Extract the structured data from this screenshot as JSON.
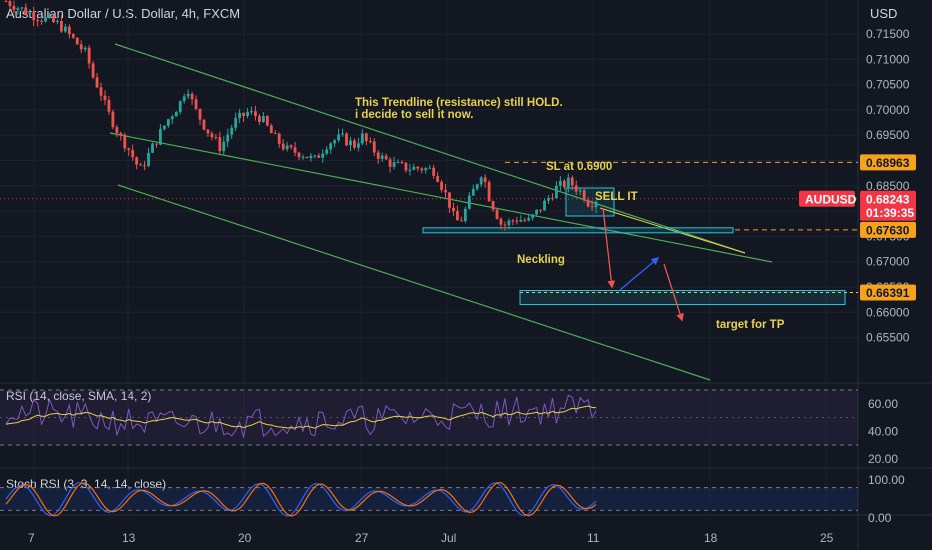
{
  "header": {
    "title": "Australian Dollar / U.S. Dollar, 4h, FXCM",
    "currency": "USD"
  },
  "price_axis": {
    "ticks": [
      "0.71500",
      "0.71000",
      "0.70500",
      "0.70000",
      "0.69500",
      "0.69000",
      "0.68500",
      "0.68000",
      "0.67500",
      "0.67000",
      "0.66500",
      "0.66000",
      "0.65500"
    ]
  },
  "time_axis": {
    "ticks": [
      "7",
      "13",
      "20",
      "27",
      "Jul",
      "11",
      "18",
      "25"
    ]
  },
  "price_tags": [
    {
      "price": 0.68963,
      "label": "0.68963",
      "bg": "#f7a21b",
      "fg": "#131722"
    },
    {
      "price": 0.6763,
      "label": "0.67630",
      "bg": "#f7a21b",
      "fg": "#131722"
    },
    {
      "price": 0.66391,
      "label": "0.66391",
      "bg": "#f7a21b",
      "fg": "#131722"
    }
  ],
  "current": {
    "symbol": "AUDUSD",
    "price": 0.68243,
    "price_label": "0.68243",
    "countdown": "01:39:35",
    "color": "#f23645"
  },
  "annotations": {
    "trendline_note_line1": "This Trendline (resistance) still HOLD.",
    "trendline_note_line2": "i decide to sell it now.",
    "sl_label": "SL at 0.6900",
    "sell_label": "SELL IT",
    "neckline_label": "Neckling",
    "target_label": "target for TP"
  },
  "rsi": {
    "label": "RSI (14, close, SMA, 14, 2)",
    "ticks": [
      "60.00",
      "40.00",
      "20.00"
    ],
    "upper_band": 70,
    "lower_band": 30,
    "line_color": "#7e57c2",
    "ma_color": "#e8d24a"
  },
  "stoch": {
    "label": "Stoch RSI (3, 3, 14, 14, close)",
    "ticks": [
      "100.00",
      "0.00"
    ],
    "k_color": "#2962ff",
    "d_color": "#ff6d00"
  },
  "colors": {
    "background": "#131722",
    "up_candle": "#26a69a",
    "down_candle": "#ef5350",
    "channel": "#4caf50",
    "sl_line": "#f7a21b",
    "box": "#26c6da"
  },
  "chart_data": {
    "type": "candlestick",
    "symbol": "AUDUSD",
    "timeframe": "4h",
    "ylim": [
      0.6525,
      0.7185
    ],
    "x_axis_dates": [
      "7",
      "13",
      "20",
      "27",
      "Jul",
      "11",
      "18",
      "25"
    ],
    "levels": {
      "stop_loss": 0.69,
      "sl_marker": 0.68963,
      "neckline": 0.6763,
      "take_profit": 0.66391,
      "last": 0.68243
    },
    "close_path": [
      {
        "x": 0,
        "y": 0.7215
      },
      {
        "x": 2,
        "y": 0.7188
      },
      {
        "x": 4,
        "y": 0.7168
      },
      {
        "x": 5,
        "y": 0.714
      },
      {
        "x": 6,
        "y": 0.711
      },
      {
        "x": 6.5,
        "y": 0.7065
      },
      {
        "x": 7,
        "y": 0.704
      },
      {
        "x": 7.5,
        "y": 0.7
      },
      {
        "x": 8,
        "y": 0.6975
      },
      {
        "x": 8.5,
        "y": 0.6948
      },
      {
        "x": 9,
        "y": 0.693
      },
      {
        "x": 9.5,
        "y": 0.6905
      },
      {
        "x": 10,
        "y": 0.688
      },
      {
        "x": 11,
        "y": 0.693
      },
      {
        "x": 12,
        "y": 0.6978
      },
      {
        "x": 13,
        "y": 0.7015
      },
      {
        "x": 13.5,
        "y": 0.705
      },
      {
        "x": 14,
        "y": 0.7005
      },
      {
        "x": 15,
        "y": 0.696
      },
      {
        "x": 16,
        "y": 0.6925
      },
      {
        "x": 17,
        "y": 0.6975
      },
      {
        "x": 18,
        "y": 0.6995
      },
      {
        "x": 19,
        "y": 0.6985
      },
      {
        "x": 20,
        "y": 0.6945
      },
      {
        "x": 21,
        "y": 0.692
      },
      {
        "x": 22,
        "y": 0.6915
      },
      {
        "x": 23,
        "y": 0.69
      },
      {
        "x": 24,
        "y": 0.6935
      },
      {
        "x": 25,
        "y": 0.6945
      },
      {
        "x": 26,
        "y": 0.693
      },
      {
        "x": 26.5,
        "y": 0.695
      },
      {
        "x": 27,
        "y": 0.6932
      },
      {
        "x": 28,
        "y": 0.6905
      },
      {
        "x": 29,
        "y": 0.689
      },
      {
        "x": 30,
        "y": 0.6885
      },
      {
        "x": 31,
        "y": 0.6885
      },
      {
        "x": 32,
        "y": 0.688
      },
      {
        "x": 33,
        "y": 0.682
      },
      {
        "x": 33.5,
        "y": 0.6778
      },
      {
        "x": 34,
        "y": 0.6785
      },
      {
        "x": 35,
        "y": 0.685
      },
      {
        "x": 35.5,
        "y": 0.688
      },
      {
        "x": 36,
        "y": 0.683
      },
      {
        "x": 37,
        "y": 0.677
      },
      {
        "x": 38,
        "y": 0.6785
      },
      {
        "x": 39,
        "y": 0.678
      },
      {
        "x": 40,
        "y": 0.681
      },
      {
        "x": 41,
        "y": 0.6845
      },
      {
        "x": 42,
        "y": 0.6858
      },
      {
        "x": 43,
        "y": 0.6835
      },
      {
        "x": 43.5,
        "y": 0.6815
      },
      {
        "x": 44,
        "y": 0.6824
      }
    ],
    "price_range": {
      "min": 0.6755,
      "max": 0.7215
    }
  }
}
